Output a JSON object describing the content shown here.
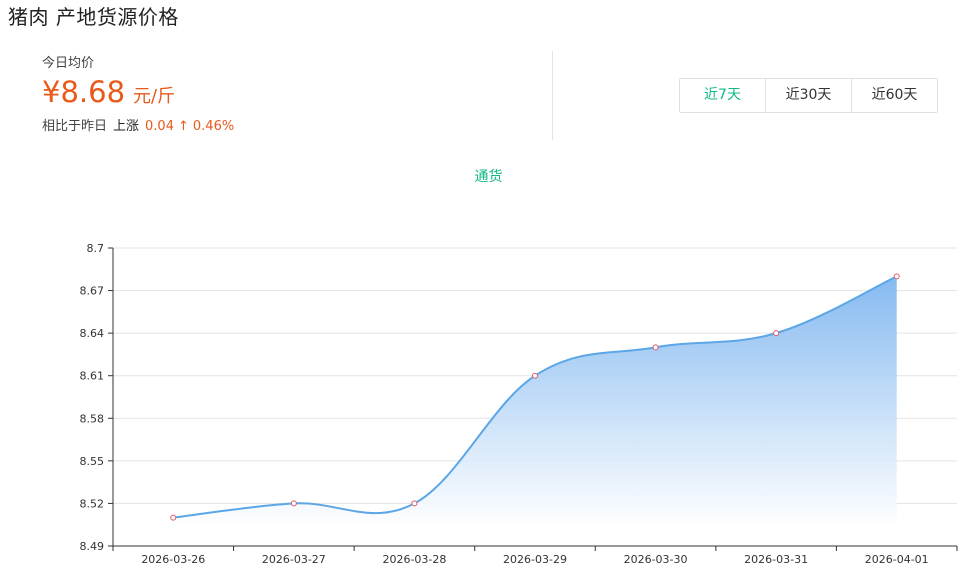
{
  "header": {
    "title": "猪肉 产地货源价格"
  },
  "summary": {
    "avg_label": "今日均价",
    "price": "¥8.68",
    "unit": "元/斤",
    "compare_label": "相比于昨日",
    "direction": "上涨",
    "change_amount": "0.04",
    "arrow": "↑",
    "change_percent": "0.46%"
  },
  "range_tabs": [
    {
      "label": "近7天",
      "active": true
    },
    {
      "label": "近30天",
      "active": false
    },
    {
      "label": "近60天",
      "active": false
    }
  ],
  "channel": {
    "label": "通货"
  },
  "colors": {
    "accent": "#12b886",
    "price": "#e8591a",
    "line": "#5aa6e6",
    "area_top": "#7fb6f0"
  },
  "chart_data": {
    "type": "area",
    "x": [
      "2026-03-26",
      "2026-03-27",
      "2026-03-28",
      "2026-03-29",
      "2026-03-30",
      "2026-03-31",
      "2026-04-01"
    ],
    "values": [
      8.51,
      8.52,
      8.52,
      8.61,
      8.63,
      8.64,
      8.68
    ],
    "yticks": [
      "8.49",
      "8.52",
      "8.55",
      "8.58",
      "8.61",
      "8.64",
      "8.67",
      "8.7"
    ],
    "ylim": [
      8.49,
      8.7
    ],
    "grid": true,
    "smooth": true
  }
}
